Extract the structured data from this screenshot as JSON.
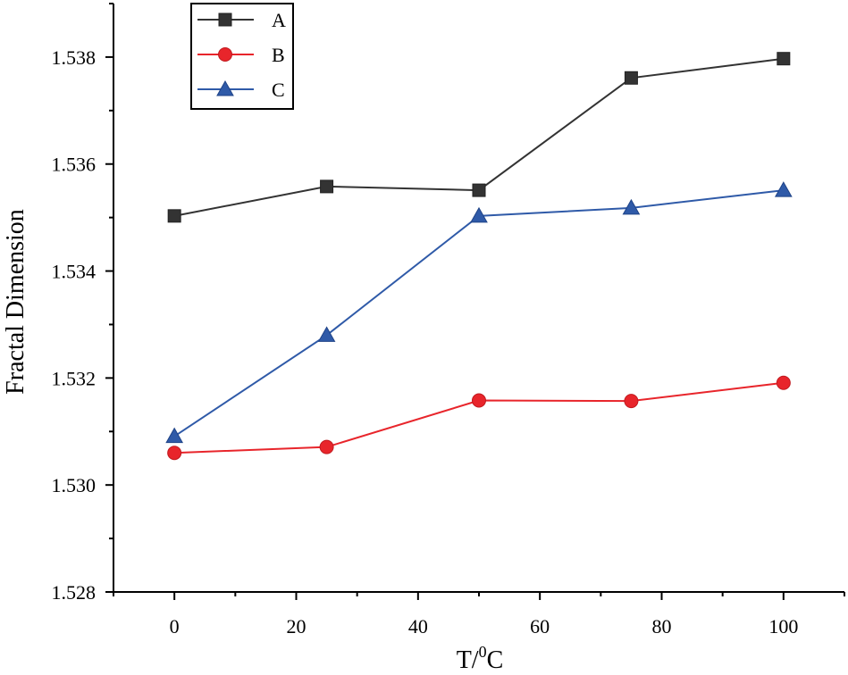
{
  "chart_data": {
    "type": "line",
    "title": "",
    "xlabel": "T/",
    "xlabel_sup": "0",
    "xlabel_unit": "C",
    "ylabel": "Fractal Dimension",
    "x": [
      0,
      25,
      50,
      75,
      100
    ],
    "xlim": [
      -10,
      110
    ],
    "ylim": [
      1.528,
      1.539
    ],
    "xticks": [
      0,
      20,
      40,
      60,
      80,
      100
    ],
    "xtick_labels": [
      "0",
      "20",
      "40",
      "60",
      "80",
      "100"
    ],
    "yticks": [
      1.528,
      1.53,
      1.532,
      1.534,
      1.536,
      1.538
    ],
    "ytick_labels": [
      "1.528",
      "1.530",
      "1.532",
      "1.534",
      "1.536",
      "1.538"
    ],
    "grid": false,
    "legend_position": "top-left",
    "series": [
      {
        "name": "A",
        "color": "#333333",
        "marker": "square",
        "values": [
          1.53503,
          1.53558,
          1.53551,
          1.53761,
          1.53797
        ]
      },
      {
        "name": "B",
        "color": "#e8252b",
        "marker": "circle",
        "values": [
          1.5306,
          1.53071,
          1.53158,
          1.53157,
          1.53191
        ]
      },
      {
        "name": "C",
        "color": "#2f5aa8",
        "marker": "triangle",
        "values": [
          1.53091,
          1.5328,
          1.53503,
          1.53518,
          1.53551
        ]
      }
    ]
  }
}
